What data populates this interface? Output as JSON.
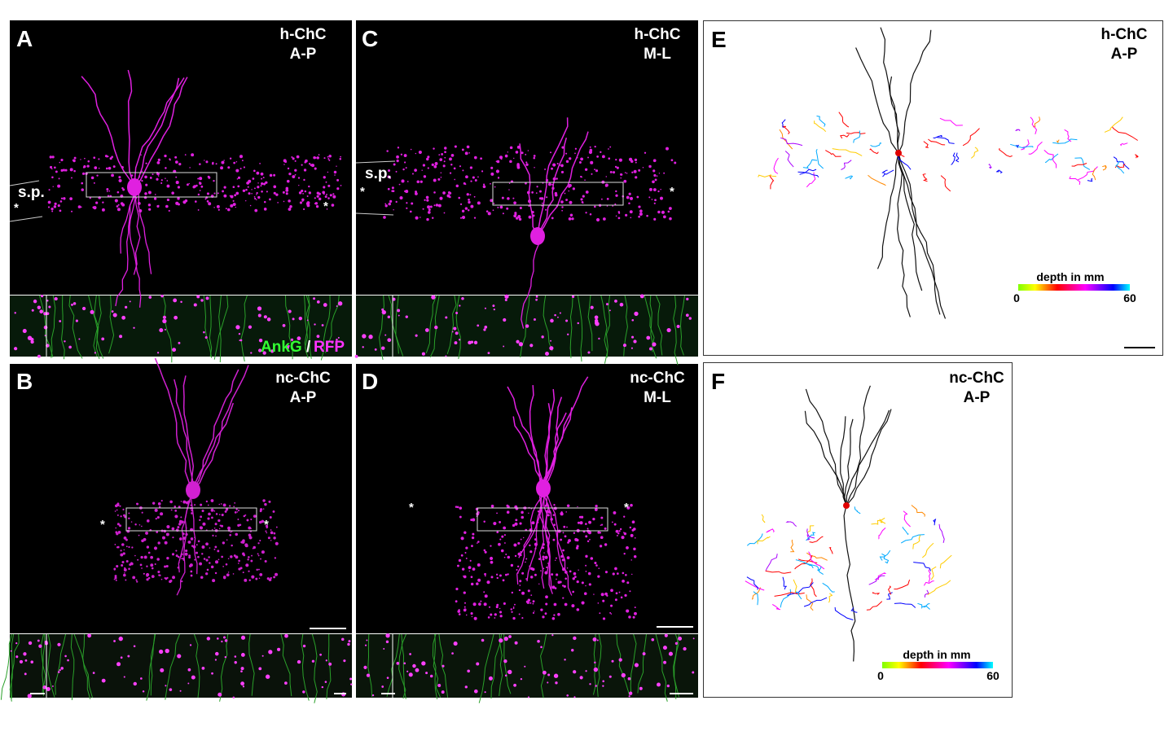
{
  "panels": [
    {
      "letter": "A",
      "title": [
        "h-ChC",
        "A-P"
      ],
      "marks": [
        "s.p.",
        "*",
        "*"
      ],
      "inset_legend": [
        "AnkG",
        "/",
        "RFP"
      ]
    },
    {
      "letter": "B",
      "title": [
        "nc-ChC",
        "A-P"
      ],
      "marks": [
        "*",
        "*"
      ]
    },
    {
      "letter": "C",
      "title": [
        "h-ChC",
        "M-L"
      ],
      "marks": [
        "s.p.",
        "*",
        "*"
      ]
    },
    {
      "letter": "D",
      "title": [
        "nc-ChC",
        "M-L"
      ],
      "marks": [
        "*",
        "*"
      ]
    },
    {
      "letter": "E",
      "title": [
        "h-ChC",
        "A-P"
      ],
      "colorbar": {
        "label": "depth in mm",
        "min": "0",
        "max": "60"
      }
    },
    {
      "letter": "F",
      "title": [
        "nc-ChC",
        "A-P"
      ],
      "colorbar": {
        "label": "depth in mm",
        "min": "0",
        "max": "60"
      }
    }
  ]
}
